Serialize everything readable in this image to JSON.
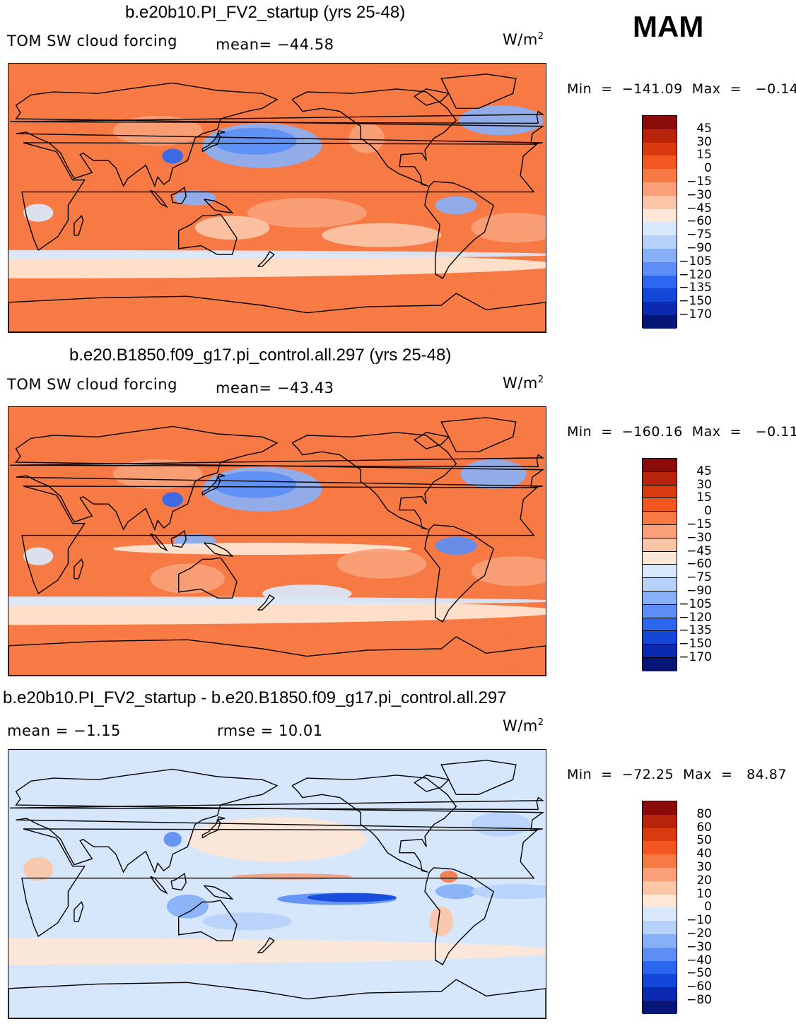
{
  "season": "MAM",
  "panels": [
    {
      "title": "b.e20b10.PI_FV2_startup (yrs 25-48)",
      "variable": "TOM SW cloud forcing",
      "mean_text": "mean=  −44.58",
      "unit": "W/m",
      "unit_sup": "2",
      "minmax_text": "Min  =  −141.09  Max  =   −0.14",
      "background_color": "#f77a45"
    },
    {
      "title": "b.e20.B1850.f09_g17.pi_control.all.297 (yrs 25-48)",
      "variable": "TOM SW cloud forcing",
      "mean_text": "mean=  −43.43",
      "unit": "W/m",
      "unit_sup": "2",
      "minmax_text": "Min  =  −160.16  Max  =   −0.11",
      "background_color": "#f77a45"
    },
    {
      "title": "b.e20b10.PI_FV2_startup - b.e20.B1850.f09_g17.pi_control.all.297",
      "variable": "mean  =   −1.15",
      "mean_text": "rmse  =   10.01",
      "unit": "W/m",
      "unit_sup": "2",
      "minmax_text": "Min  =  −72.25  Max  =   84.87",
      "background_color": "#d6e6fb"
    }
  ],
  "chart_data": [
    {
      "type": "heatmap",
      "title": "b.e20b10.PI_FV2_startup (yrs 25-48)",
      "variable": "TOM SW cloud forcing",
      "units": "W/m2",
      "mean": -44.58,
      "min": -141.09,
      "max": -0.14,
      "colorbar_labels": [
        "45",
        "30",
        "15",
        "0",
        "−15",
        "−30",
        "−45",
        "−60",
        "−75",
        "−90",
        "−105",
        "−120",
        "−135",
        "−150",
        "−170"
      ],
      "colorbar_colors": [
        "#8b0a0a",
        "#b8230b",
        "#d93a0e",
        "#f3561f",
        "#f77a45",
        "#f9a07a",
        "#fbc6a8",
        "#fde7d6",
        "#d9e8fb",
        "#b6d1fa",
        "#88b0f7",
        "#5c8ef5",
        "#2d67f0",
        "#1446d8",
        "#0c2ab0",
        "#051676"
      ]
    },
    {
      "type": "heatmap",
      "title": "b.e20.B1850.f09_g17.pi_control.all.297 (yrs 25-48)",
      "variable": "TOM SW cloud forcing",
      "units": "W/m2",
      "mean": -43.43,
      "min": -160.16,
      "max": -0.11,
      "colorbar_labels": [
        "45",
        "30",
        "15",
        "0",
        "−15",
        "−30",
        "−45",
        "−60",
        "−75",
        "−90",
        "−105",
        "−120",
        "−135",
        "−150",
        "−170"
      ],
      "colorbar_colors": [
        "#8b0a0a",
        "#b8230b",
        "#d93a0e",
        "#f3561f",
        "#f77a45",
        "#f9a07a",
        "#fbc6a8",
        "#fde7d6",
        "#d9e8fb",
        "#b6d1fa",
        "#88b0f7",
        "#5c8ef5",
        "#2d67f0",
        "#1446d8",
        "#0c2ab0",
        "#051676"
      ]
    },
    {
      "type": "heatmap",
      "title": "b.e20b10.PI_FV2_startup - b.e20.B1850.f09_g17.pi_control.all.297",
      "units": "W/m2",
      "mean": -1.15,
      "rmse": 10.01,
      "min": -72.25,
      "max": 84.87,
      "colorbar_labels": [
        "80",
        "60",
        "50",
        "40",
        "30",
        "20",
        "10",
        "0",
        "−10",
        "−20",
        "−30",
        "−40",
        "−50",
        "−60",
        "−80"
      ],
      "colorbar_colors": [
        "#8b0a0a",
        "#b8230b",
        "#d93a0e",
        "#f3561f",
        "#f77a45",
        "#f9a07a",
        "#fbc6a8",
        "#fde7d6",
        "#d9e8fb",
        "#b6d1fa",
        "#88b0f7",
        "#5c8ef5",
        "#2d67f0",
        "#1446d8",
        "#0c2ab0",
        "#051676"
      ]
    }
  ]
}
